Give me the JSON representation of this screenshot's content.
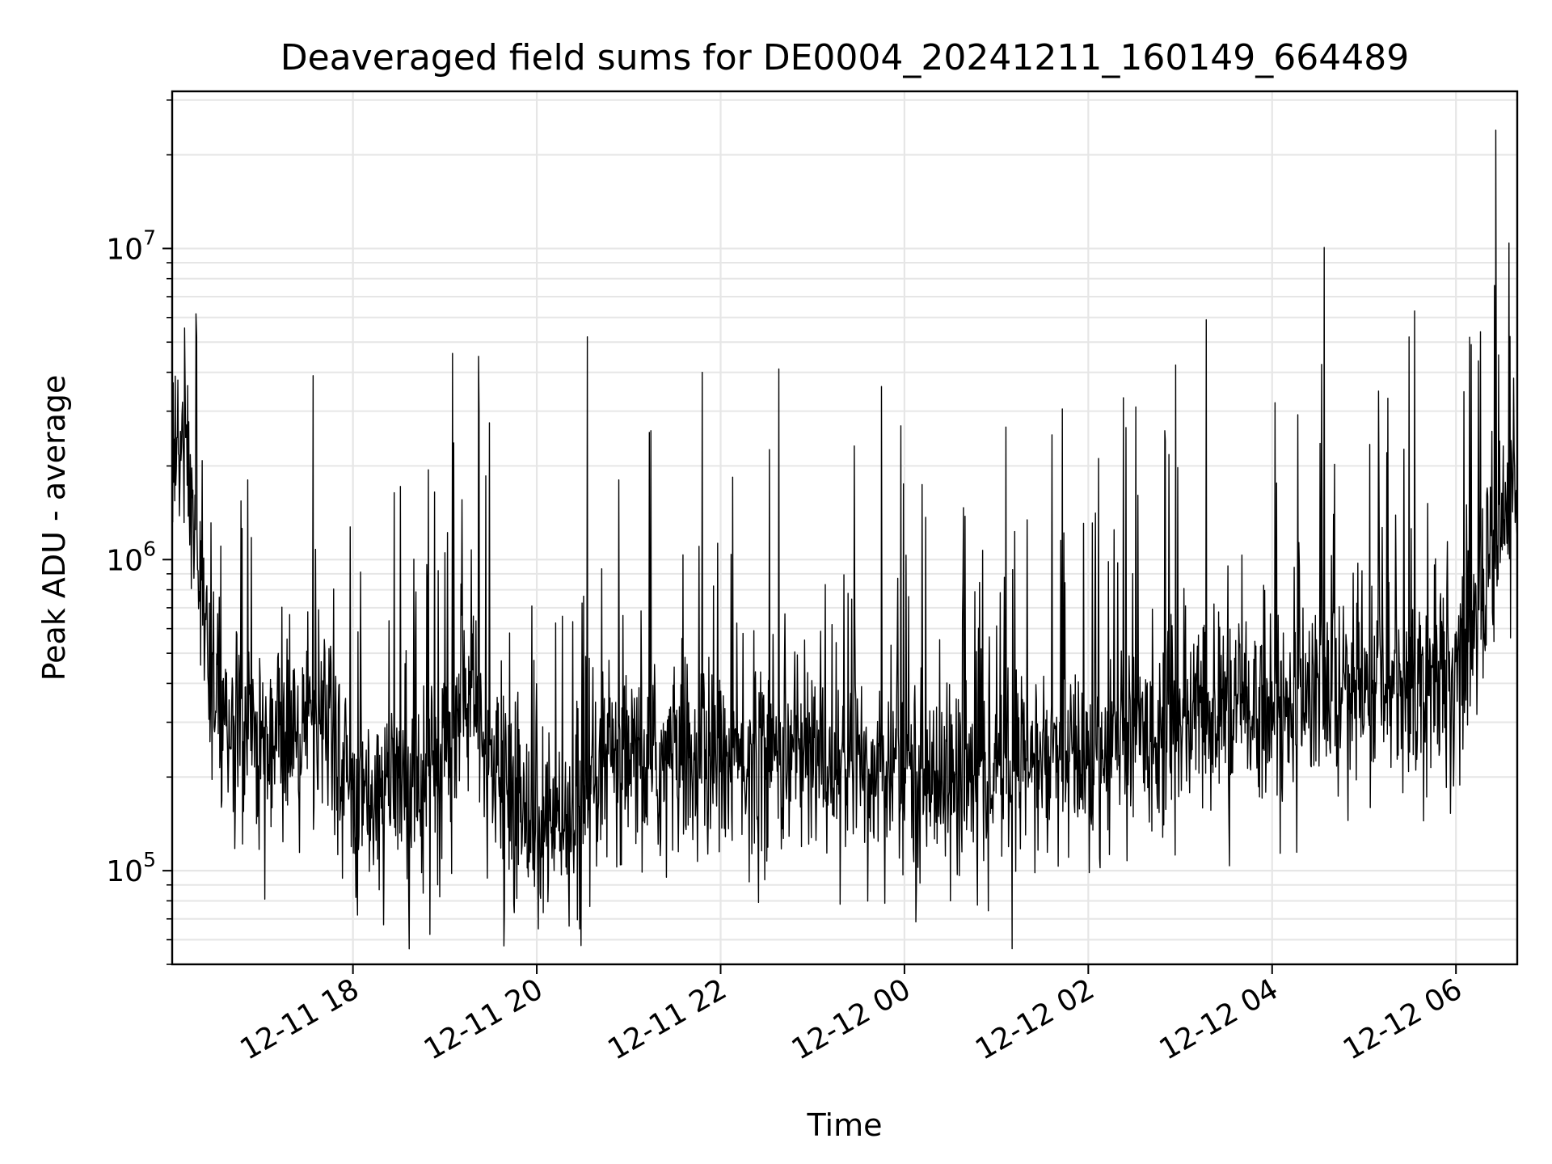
{
  "chart_data": {
    "type": "line",
    "title": "Deaveraged field sums for DE0004_20241211_160149_664489",
    "xlabel": "Time",
    "ylabel": "Peak ADU - average",
    "yscale": "log",
    "ylim": [
      50000,
      32000000
    ],
    "xlim": [
      "2024-12-11 16:02",
      "2024-12-12 06:40"
    ],
    "grid": true,
    "line_color": "#000000",
    "grid_color": "#e6e6e6",
    "x_ticks": [
      {
        "label": "12-11 18",
        "value": "2024-12-11 18:00"
      },
      {
        "label": "12-11 20",
        "value": "2024-12-11 20:00"
      },
      {
        "label": "12-11 22",
        "value": "2024-12-11 22:00"
      },
      {
        "label": "12-12 00",
        "value": "2024-12-12 00:00"
      },
      {
        "label": "12-12 02",
        "value": "2024-12-12 02:00"
      },
      {
        "label": "12-12 04",
        "value": "2024-12-12 04:00"
      },
      {
        "label": "12-12 06",
        "value": "2024-12-12 06:00"
      }
    ],
    "y_ticks": [
      {
        "base": "10",
        "exp": "5",
        "value": 100000
      },
      {
        "base": "10",
        "exp": "6",
        "value": 1000000
      },
      {
        "base": "10",
        "exp": "7",
        "value": 10000000
      }
    ],
    "series": [
      {
        "x": [
          "2024-12-11 16:02",
          "2024-12-11 16:10",
          "2024-12-11 16:15",
          "2024-12-11 16:20",
          "2024-12-11 16:30",
          "2024-12-11 16:45",
          "2024-12-11 17:00",
          "2024-12-11 17:15",
          "2024-12-11 17:30",
          "2024-12-11 17:45",
          "2024-12-11 18:00",
          "2024-12-11 18:15",
          "2024-12-11 18:30",
          "2024-12-11 18:45",
          "2024-12-11 19:00",
          "2024-12-11 19:15",
          "2024-12-11 19:30",
          "2024-12-11 19:45",
          "2024-12-11 20:00",
          "2024-12-11 20:15",
          "2024-12-11 20:30",
          "2024-12-11 20:45",
          "2024-12-11 21:00",
          "2024-12-11 21:30",
          "2024-12-11 22:00",
          "2024-12-11 22:30",
          "2024-12-11 23:00",
          "2024-12-11 23:30",
          "2024-12-12 00:00",
          "2024-12-12 00:30",
          "2024-12-12 01:00",
          "2024-12-12 01:30",
          "2024-12-12 02:00",
          "2024-12-12 02:30",
          "2024-12-12 03:00",
          "2024-12-12 03:30",
          "2024-12-12 04:00",
          "2024-12-12 04:30",
          "2024-12-12 05:00",
          "2024-12-12 05:30",
          "2024-12-12 06:00",
          "2024-12-12 06:15",
          "2024-12-12 06:30",
          "2024-12-12 06:40"
        ],
        "y": [
          2000000,
          2500000,
          1500000,
          900000,
          300000,
          250000,
          270000,
          260000,
          300000,
          250000,
          200000,
          180000,
          190000,
          210000,
          220000,
          400000,
          200000,
          170000,
          150000,
          130000,
          120000,
          220000,
          210000,
          230000,
          220000,
          240000,
          230000,
          220000,
          210000,
          200000,
          210000,
          220000,
          230000,
          280000,
          300000,
          320000,
          340000,
          360000,
          380000,
          400000,
          450000,
          700000,
          1300000,
          1800000
        ]
      }
    ],
    "spikes": [
      {
        "x": "2024-12-11 16:18",
        "y": 5200000
      },
      {
        "x": "2024-12-11 17:34",
        "y": 3900000
      },
      {
        "x": "2024-12-11 19:05",
        "y": 4600000
      },
      {
        "x": "2024-12-11 19:22",
        "y": 4500000
      },
      {
        "x": "2024-12-11 20:33",
        "y": 5200000
      },
      {
        "x": "2024-12-11 21:48",
        "y": 4000000
      },
      {
        "x": "2024-12-11 22:38",
        "y": 4100000
      },
      {
        "x": "2024-12-11 23:45",
        "y": 3600000
      },
      {
        "x": "2024-12-12 03:17",
        "y": 5900000
      },
      {
        "x": "2024-12-12 05:33",
        "y": 6300000
      },
      {
        "x": "2024-12-12 06:16",
        "y": 5400000
      },
      {
        "x": "2024-12-12 06:26",
        "y": 24000000
      }
    ],
    "dips": [
      {
        "x": "2024-12-11 18:03",
        "y": 72000
      },
      {
        "x": "2024-12-11 18:20",
        "y": 67000
      },
      {
        "x": "2024-12-11 19:45",
        "y": 78000
      },
      {
        "x": "2024-12-11 20:01",
        "y": 65000
      },
      {
        "x": "2024-12-11 20:28",
        "y": 65000
      },
      {
        "x": "2024-12-11 23:18",
        "y": 78000
      },
      {
        "x": "2024-12-12 00:30",
        "y": 80000
      }
    ]
  }
}
